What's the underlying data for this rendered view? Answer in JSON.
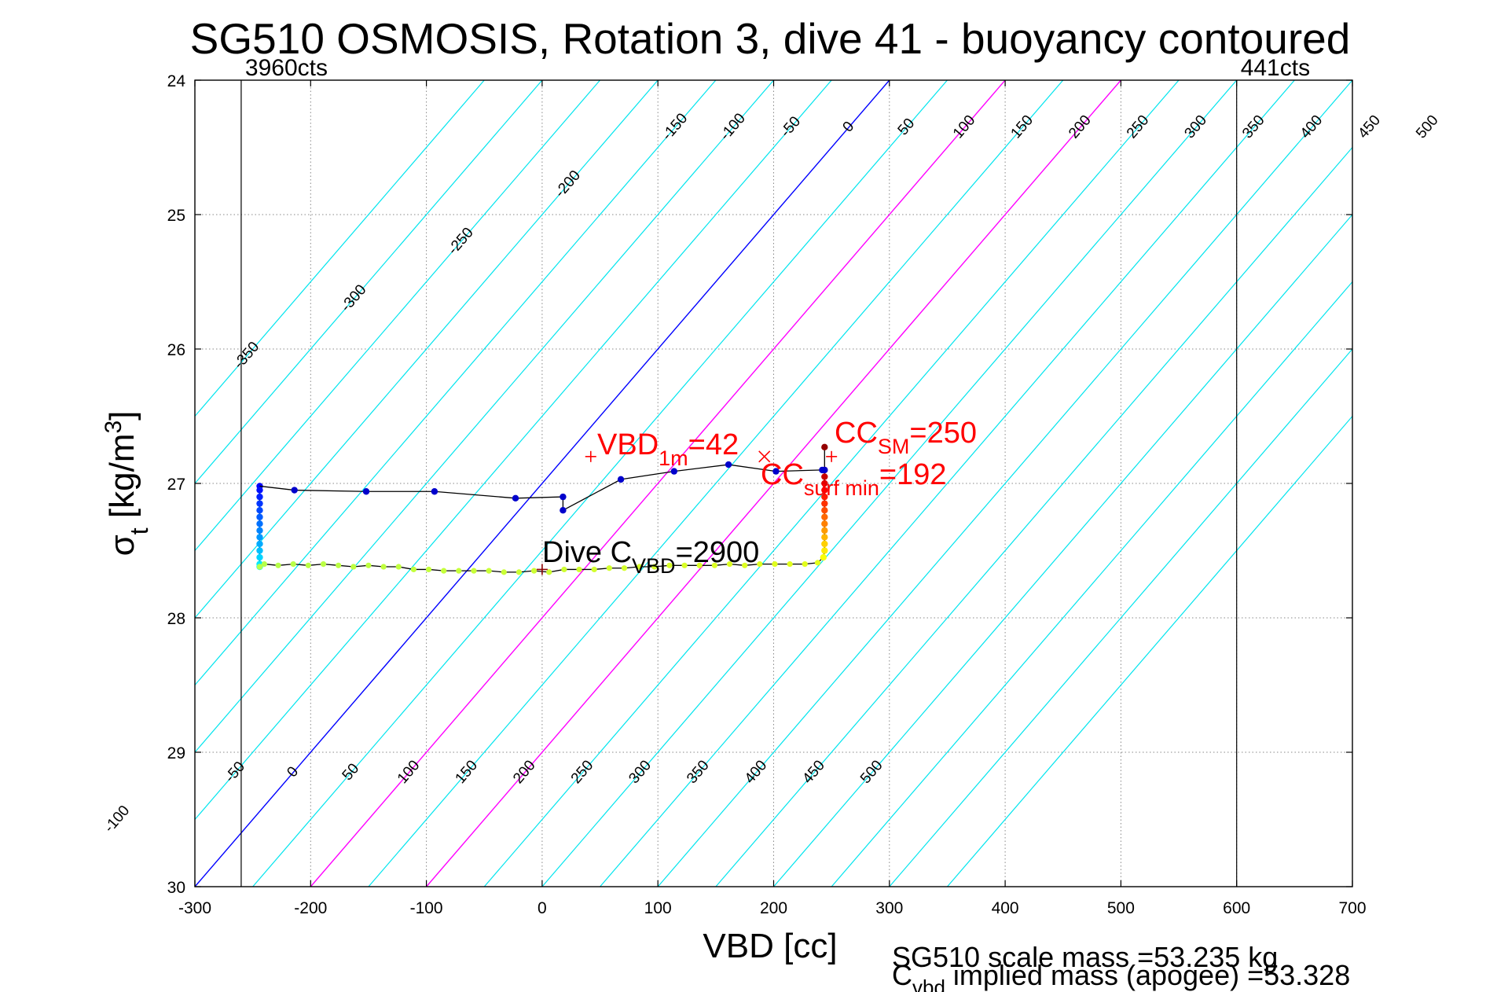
{
  "chart_data": {
    "type": "line",
    "title": "SG510 OSMOSIS, Rotation 3, dive 41 - buoyancy contoured",
    "xlabel": "VBD [cc]",
    "ylabel": {
      "main": "σ",
      "sub": "t",
      "unit": " [kg/m",
      "sup": "3",
      "close": "]"
    },
    "xlim": [
      -300,
      700
    ],
    "ylim": [
      24,
      30
    ],
    "y_reversed": true,
    "grid": true,
    "xticks": [
      -300,
      -200,
      -100,
      0,
      100,
      200,
      300,
      400,
      500,
      600,
      700
    ],
    "yticks": [
      24,
      25,
      26,
      27,
      28,
      29,
      30
    ],
    "count_markers": [
      {
        "x": -260,
        "label": "3960cts"
      },
      {
        "x": 600,
        "label": "441cts"
      }
    ],
    "buoyancy_contours": {
      "levels": [
        -350,
        -300,
        -250,
        -200,
        -150,
        -100,
        -50,
        0,
        50,
        100,
        150,
        200,
        250,
        300,
        350,
        400,
        450,
        500,
        550,
        600,
        650
      ],
      "zero_crossing_at_sigma_27": 0,
      "slope_cc_per_sigma": -100,
      "line_color": "#00e5ee",
      "zero_color": "#0000ff",
      "highlight_color": "#ff00ff",
      "highlight_levels": [
        100,
        200
      ],
      "top_labels": [
        "-350",
        "-300",
        "-250",
        "-200",
        "-150",
        "-100",
        "-50",
        "0",
        "50",
        "100",
        "150",
        "200",
        "250",
        "300",
        "350",
        "400",
        "450",
        "500"
      ],
      "bottom_labels": [
        "-100",
        "-50",
        "0",
        "50",
        "100",
        "150",
        "200",
        "250",
        "300",
        "350",
        "400",
        "450",
        "500"
      ]
    },
    "series": [
      {
        "kind": "dive_profile",
        "color": "#000000",
        "x": [
          -244,
          -244,
          -244,
          -244,
          -244,
          -244,
          -244,
          -244,
          -244,
          -244,
          -244,
          -244,
          -244,
          -244,
          -244,
          -244,
          -244,
          -240,
          -228,
          -215,
          -202,
          -189,
          -176,
          -163,
          -150,
          -137,
          -124,
          -111,
          -98,
          -85,
          -72,
          -59,
          -46,
          -33,
          -20,
          -7,
          6,
          19,
          32,
          45,
          58,
          71,
          84,
          97,
          110,
          123,
          136,
          149,
          162,
          175,
          188,
          201,
          214,
          227,
          238,
          243,
          244,
          244,
          244,
          244,
          244,
          244,
          244,
          244,
          244,
          244,
          244,
          244,
          244,
          244
        ],
        "y": [
          27.02,
          27.05,
          27.1,
          27.15,
          27.2,
          27.25,
          27.3,
          27.35,
          27.4,
          27.45,
          27.5,
          27.55,
          27.6,
          27.62,
          27.62,
          27.62,
          27.62,
          27.6,
          27.61,
          27.6,
          27.61,
          27.6,
          27.61,
          27.62,
          27.61,
          27.62,
          27.62,
          27.64,
          27.64,
          27.65,
          27.65,
          27.65,
          27.65,
          27.66,
          27.66,
          27.65,
          27.66,
          27.64,
          27.64,
          27.64,
          27.63,
          27.63,
          27.62,
          27.62,
          27.61,
          27.61,
          27.61,
          27.61,
          27.6,
          27.61,
          27.6,
          27.6,
          27.6,
          27.6,
          27.59,
          27.55,
          27.5,
          27.45,
          27.4,
          27.35,
          27.3,
          27.25,
          27.2,
          27.15,
          27.1,
          27.05,
          27.0,
          26.95,
          26.9,
          26.73
        ]
      },
      {
        "kind": "climb_samples",
        "color": "#0000cc",
        "x": [
          -214,
          -152,
          -93,
          -23,
          18,
          18,
          68,
          114,
          161,
          202,
          242,
          244
        ],
        "y": [
          27.05,
          27.06,
          27.06,
          27.11,
          27.1,
          27.2,
          26.97,
          26.91,
          26.86,
          26.91,
          26.9,
          26.9
        ]
      }
    ],
    "annotations": [
      {
        "kind": "plus_marker",
        "x": 42,
        "y": 26.8,
        "color": "#ff0000"
      },
      {
        "kind": "x_marker",
        "x": 192,
        "y": 26.8,
        "color": "#ff0000"
      },
      {
        "kind": "plus_marker",
        "x": 250,
        "y": 26.8,
        "color": "#ff0000"
      },
      {
        "kind": "plus_marker",
        "x": 0,
        "y": 27.64,
        "color": "#8b0000"
      }
    ],
    "text_annotations": {
      "vbd_1m": {
        "main": "VBD",
        "sub": "1m",
        "rest": "=42",
        "color": "#ff0000"
      },
      "cc_sm": {
        "main": "CC",
        "sub": "SM",
        "rest": "=250",
        "color": "#ff0000"
      },
      "cc_surf_min": {
        "main": "CC",
        "sub": "surf min",
        "rest": "=192",
        "color": "#ff0000"
      },
      "dive_cvbd": {
        "main": "Dive C",
        "sub": "VBD",
        "rest": "=2900",
        "color": "#000000"
      }
    },
    "footer": {
      "line1": "SG510 scale mass =53.235 kg",
      "line2_main": "C",
      "line2_sub": "vbd",
      "line2_rest": " implied mass (apogee) =53.328"
    }
  }
}
